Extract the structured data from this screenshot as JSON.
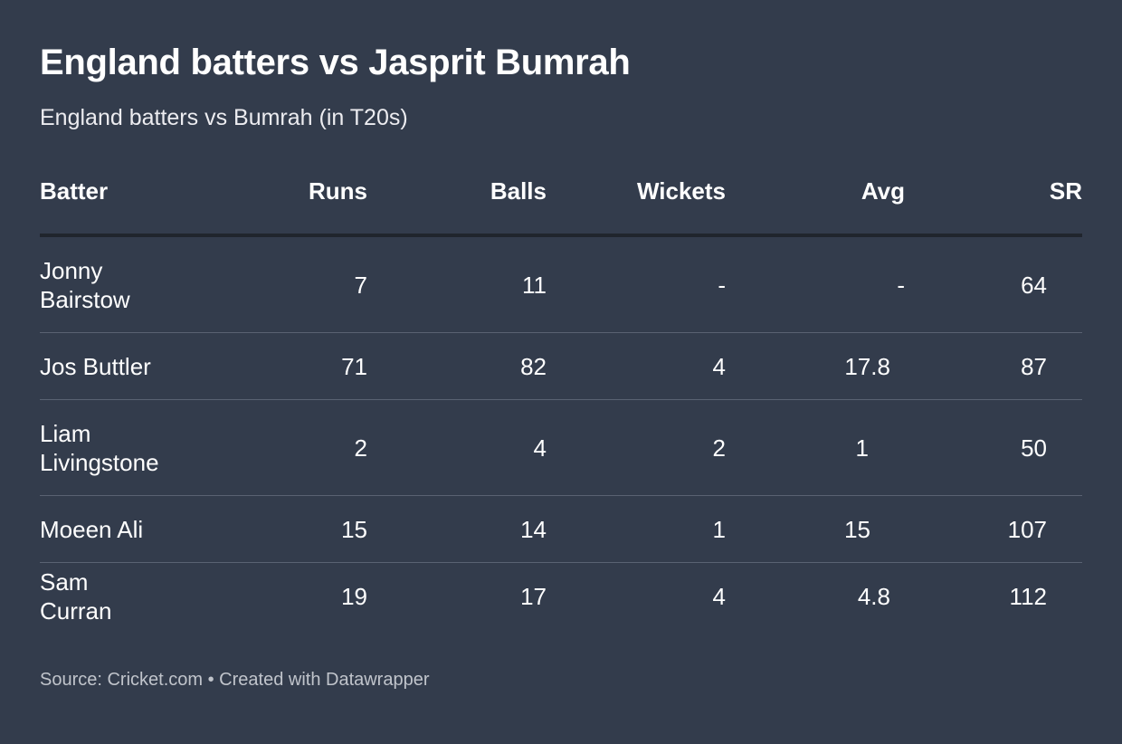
{
  "chart_data": {
    "type": "table",
    "title": "England batters vs Jasprit Bumrah",
    "subtitle": "England batters vs Bumrah (in T20s)",
    "columns": [
      "Batter",
      "Runs",
      "Balls",
      "Wickets",
      "Avg",
      "SR"
    ],
    "rows": [
      [
        "Jonny Bairstow",
        "7",
        "11",
        "-",
        "-",
        "64"
      ],
      [
        "Jos Buttler",
        "71",
        "82",
        "4",
        "17.8",
        "87"
      ],
      [
        "Liam Livingstone",
        "2",
        "4",
        "2",
        "1",
        "50"
      ],
      [
        "Moeen Ali",
        "15",
        "14",
        "1",
        "15",
        "107"
      ],
      [
        "Sam Curran",
        "19",
        "17",
        "4",
        "4.8",
        "112"
      ]
    ],
    "source": "Source: Cricket.com • Created with Datawrapper"
  },
  "colors": {
    "background": "#333c4c",
    "text": "#ffffff",
    "header_rule": "#20252d",
    "row_rule": "#5a6272",
    "footer_text": "#c0c4cb"
  }
}
